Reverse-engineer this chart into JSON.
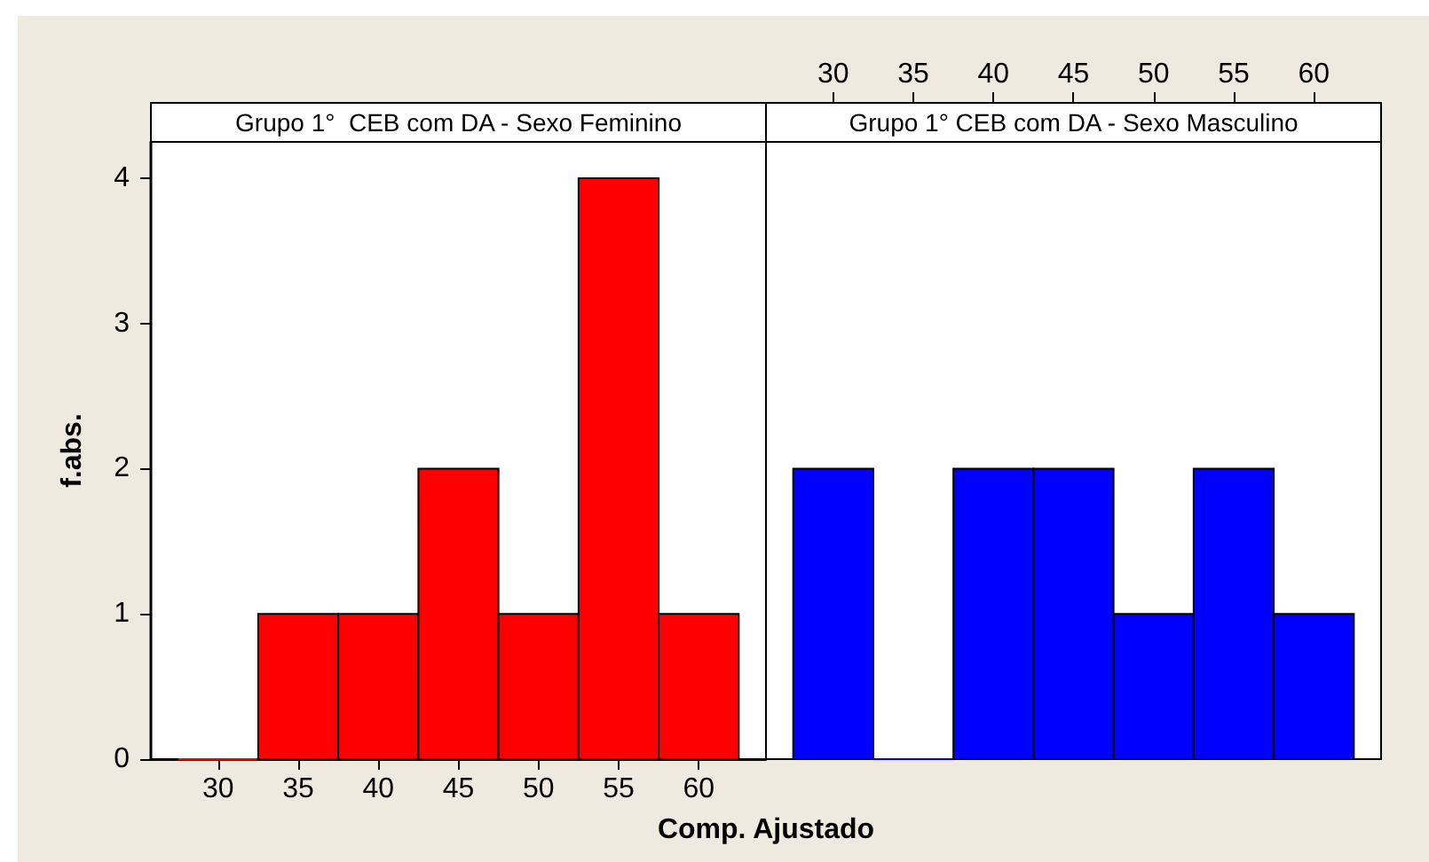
{
  "chart_data": [
    {
      "type": "histogram",
      "title": "Grupo 1°  CEB com DA - Sexo Feminino",
      "xlabel": "Comp. Ajustado",
      "ylabel": "f.abs.",
      "bins": [
        27.5,
        32.5,
        37.5,
        42.5,
        47.5,
        52.5,
        57.5,
        62.5
      ],
      "values": [
        0,
        1,
        1,
        2,
        1,
        4,
        1
      ],
      "color": "#ff0000",
      "xlim": [
        25.8,
        64.2
      ],
      "xticks": [
        30,
        35,
        40,
        45,
        50,
        55,
        60
      ],
      "ylim": [
        0,
        4.25
      ],
      "yticks": [
        0,
        1,
        2,
        3,
        4
      ]
    },
    {
      "type": "histogram",
      "title": "Grupo 1° CEB com DA - Sexo Masculino",
      "bins": [
        27.5,
        32.5,
        37.5,
        42.5,
        47.5,
        52.5,
        57.5,
        62.5
      ],
      "values": [
        2,
        0,
        2,
        2,
        1,
        2,
        1
      ],
      "color": "#0000ff",
      "xlim": [
        25.8,
        64.2
      ],
      "xticks": [
        30,
        35,
        40,
        45,
        50,
        55,
        60
      ],
      "ylim": [
        0,
        4.25
      ],
      "tick_labels": "x"
    }
  ]
}
